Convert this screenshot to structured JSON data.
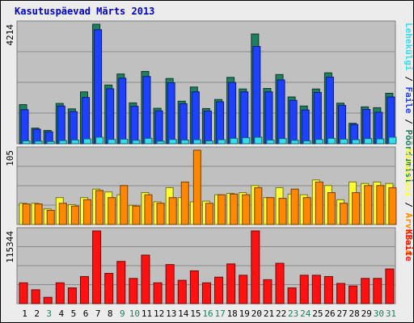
{
  "title": "Kasutuspäevad Märts 2013",
  "colors": {
    "pageviews": "#1f7f5f",
    "files": "#1e40ff",
    "hits": "#33ddee",
    "visits": "#ff8800",
    "unique_visitors": "#ffff33",
    "kbytes": "#ff1111",
    "plot_bg": "#c0c0c0",
    "weekday_label": "#000000",
    "weekend_label": "#1f7f5f"
  },
  "chart_data": [
    {
      "type": "bar",
      "panel": "top",
      "y_max_label": "4214",
      "ylim": [
        0,
        4214
      ],
      "legend_placement": "right",
      "legend": [
        {
          "label": "Pöördumisi",
          "color": "#1f7f5f"
        },
        {
          "label": "Faile",
          "color": "#1e40ff"
        },
        {
          "label": "Lehekülgi",
          "color": "#33ddee"
        }
      ],
      "categories": [
        "1",
        "2",
        "3",
        "4",
        "5",
        "6",
        "7",
        "8",
        "9",
        "10",
        "11",
        "12",
        "13",
        "14",
        "15",
        "16",
        "17",
        "18",
        "19",
        "20",
        "21",
        "22",
        "23",
        "24",
        "25",
        "26",
        "27",
        "28",
        "29",
        "30",
        "31"
      ],
      "series": [
        {
          "name": "Pöördumisi",
          "values": [
            1380,
            550,
            470,
            1420,
            1230,
            1830,
            4214,
            2070,
            2460,
            1440,
            2550,
            1250,
            2300,
            1500,
            2000,
            1240,
            1560,
            2340,
            1930,
            3870,
            1950,
            2440,
            1650,
            1330,
            1930,
            2500,
            1430,
            720,
            1300,
            1270,
            1780
          ]
        },
        {
          "name": "Faile",
          "values": [
            1200,
            510,
            420,
            1330,
            1130,
            1630,
            4020,
            1940,
            2310,
            1320,
            2370,
            1160,
            2150,
            1410,
            1830,
            1150,
            1480,
            2160,
            1830,
            3430,
            1830,
            2250,
            1530,
            1190,
            1810,
            2350,
            1350,
            680,
            1210,
            1110,
            1650
          ]
        },
        {
          "name": "Lehekülgi",
          "values": [
            100,
            90,
            80,
            110,
            130,
            170,
            230,
            150,
            160,
            120,
            190,
            90,
            150,
            130,
            140,
            100,
            140,
            190,
            210,
            230,
            130,
            180,
            120,
            100,
            150,
            190,
            160,
            140,
            180,
            170,
            230
          ]
        }
      ]
    },
    {
      "type": "bar",
      "panel": "middle",
      "y_max_label": "105",
      "ylim": [
        0,
        105
      ],
      "legend_placement": "right",
      "legend": [
        {
          "label": "Arvuteid",
          "color": "#ff8800"
        },
        {
          "label": "Külastusi",
          "color": "#ffff33"
        }
      ],
      "categories": [
        "1",
        "2",
        "3",
        "4",
        "5",
        "6",
        "7",
        "8",
        "9",
        "10",
        "11",
        "12",
        "13",
        "14",
        "15",
        "16",
        "17",
        "18",
        "19",
        "20",
        "21",
        "22",
        "23",
        "24",
        "25",
        "26",
        "27",
        "28",
        "29",
        "30",
        "31"
      ],
      "series": [
        {
          "name": "Külastusi",
          "values": [
            30,
            30,
            22,
            38,
            28,
            38,
            50,
            46,
            42,
            27,
            45,
            32,
            52,
            38,
            32,
            33,
            42,
            44,
            45,
            55,
            38,
            52,
            43,
            42,
            63,
            55,
            35,
            60,
            58,
            60,
            58
          ]
        },
        {
          "name": "Arvuteid",
          "values": [
            29,
            29,
            20,
            30,
            26,
            35,
            48,
            38,
            55,
            26,
            42,
            30,
            38,
            60,
            105,
            30,
            42,
            43,
            42,
            52,
            38,
            37,
            50,
            38,
            60,
            45,
            30,
            45,
            55,
            55,
            52
          ]
        }
      ]
    },
    {
      "type": "bar",
      "panel": "bottom",
      "y_max_label": "115344",
      "ylim": [
        0,
        115344
      ],
      "legend_placement": "right",
      "legend": [
        {
          "label": "KBaite",
          "color": "#ff1111"
        }
      ],
      "categories": [
        "1",
        "2",
        "3",
        "4",
        "5",
        "6",
        "7",
        "8",
        "9",
        "10",
        "11",
        "12",
        "13",
        "14",
        "15",
        "16",
        "17",
        "18",
        "19",
        "20",
        "21",
        "22",
        "23",
        "24",
        "25",
        "26",
        "27",
        "28",
        "29",
        "30",
        "31"
      ],
      "series": [
        {
          "name": "KBaite",
          "values": [
            33000,
            22000,
            10000,
            33000,
            25000,
            43000,
            115344,
            48000,
            67000,
            40000,
            77000,
            33000,
            62000,
            37000,
            52000,
            33000,
            42000,
            63000,
            45000,
            115344,
            38000,
            64000,
            25000,
            45000,
            45000,
            43000,
            32000,
            28000,
            40000,
            40000,
            55000
          ]
        }
      ]
    }
  ],
  "x_labels": [
    {
      "day": "1",
      "weekend": false
    },
    {
      "day": "2",
      "weekend": false
    },
    {
      "day": "3",
      "weekend": true
    },
    {
      "day": "4",
      "weekend": false
    },
    {
      "day": "5",
      "weekend": false
    },
    {
      "day": "6",
      "weekend": false
    },
    {
      "day": "7",
      "weekend": false
    },
    {
      "day": "8",
      "weekend": false
    },
    {
      "day": "9",
      "weekend": true
    },
    {
      "day": "10",
      "weekend": true
    },
    {
      "day": "11",
      "weekend": false
    },
    {
      "day": "12",
      "weekend": false
    },
    {
      "day": "13",
      "weekend": false
    },
    {
      "day": "14",
      "weekend": false
    },
    {
      "day": "15",
      "weekend": false
    },
    {
      "day": "16",
      "weekend": true
    },
    {
      "day": "17",
      "weekend": true
    },
    {
      "day": "18",
      "weekend": false
    },
    {
      "day": "19",
      "weekend": false
    },
    {
      "day": "20",
      "weekend": false
    },
    {
      "day": "21",
      "weekend": false
    },
    {
      "day": "22",
      "weekend": false
    },
    {
      "day": "23",
      "weekend": true
    },
    {
      "day": "24",
      "weekend": true
    },
    {
      "day": "25",
      "weekend": false
    },
    {
      "day": "26",
      "weekend": false
    },
    {
      "day": "27",
      "weekend": false
    },
    {
      "day": "28",
      "weekend": false
    },
    {
      "day": "29",
      "weekend": false
    },
    {
      "day": "30",
      "weekend": true
    },
    {
      "day": "31",
      "weekend": true
    }
  ]
}
